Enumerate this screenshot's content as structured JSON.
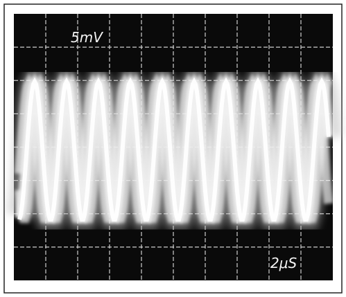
{
  "screen": {
    "volts_per_div": "5mV",
    "time_per_div": "2μS"
  }
}
